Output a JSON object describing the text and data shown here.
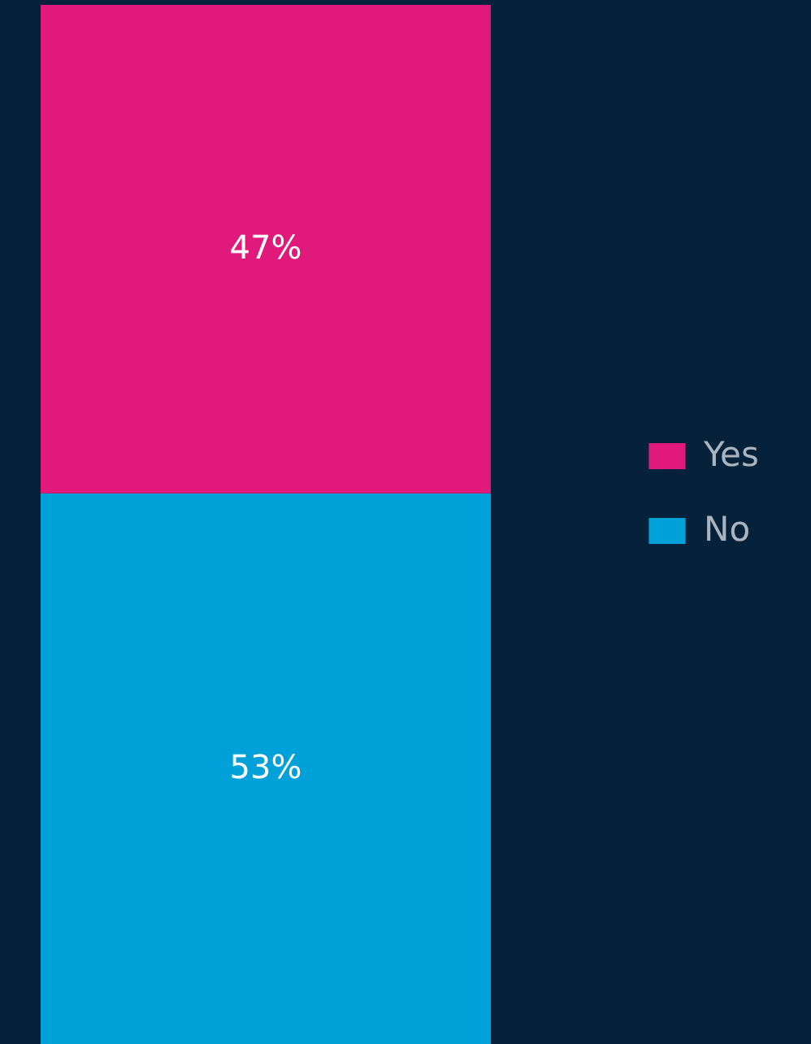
{
  "chart_data": {
    "type": "bar",
    "stacked": true,
    "categories": [
      null
    ],
    "series": [
      {
        "name": "No",
        "color": "#00a0d8",
        "values": [
          53
        ],
        "value_labels": [
          "53%"
        ]
      },
      {
        "name": "Yes",
        "color": "#e0197a",
        "values": [
          47
        ],
        "value_labels": [
          "47%"
        ]
      }
    ],
    "legend": "right",
    "tick_labels": false,
    "grid": false
  }
}
